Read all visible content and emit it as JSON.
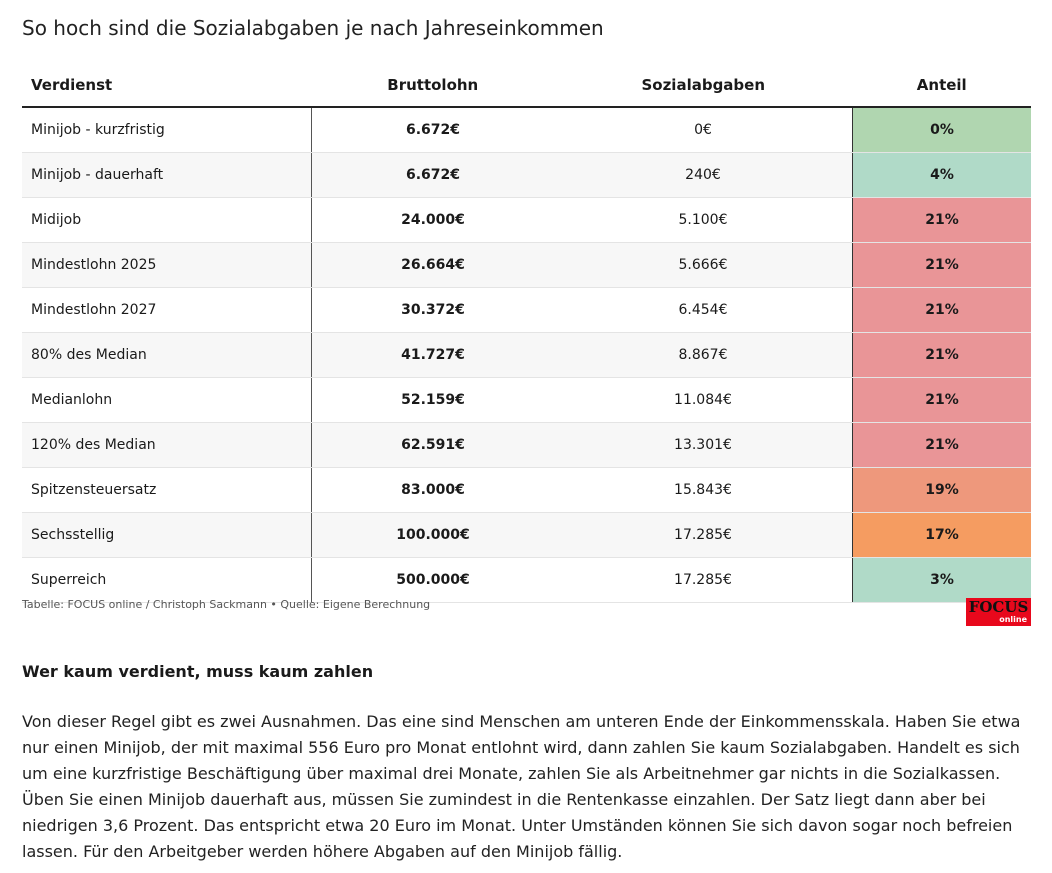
{
  "title": "So hoch sind die Sozialabgaben je nach Jahreseinkommen",
  "table": {
    "headers": [
      "Verdienst",
      "Bruttolohn",
      "Sozialabgaben",
      "Anteil"
    ],
    "rows": [
      {
        "verdienst": "Minijob - kurzfristig",
        "brutto": "6.672€",
        "abgaben": "0€",
        "anteil": "0%",
        "color": "#b0d6b0"
      },
      {
        "verdienst": "Minijob - dauerhaft",
        "brutto": "6.672€",
        "abgaben": "240€",
        "anteil": "4%",
        "color": "#b0dac8"
      },
      {
        "verdienst": "Midijob",
        "brutto": "24.000€",
        "abgaben": "5.100€",
        "anteil": "21%",
        "color": "#e99597"
      },
      {
        "verdienst": "Mindestlohn 2025",
        "brutto": "26.664€",
        "abgaben": "5.666€",
        "anteil": "21%",
        "color": "#e99597"
      },
      {
        "verdienst": "Mindestlohn 2027",
        "brutto": "30.372€",
        "abgaben": "6.454€",
        "anteil": "21%",
        "color": "#e99597"
      },
      {
        "verdienst": "80% des Median",
        "brutto": "41.727€",
        "abgaben": "8.867€",
        "anteil": "21%",
        "color": "#e99597"
      },
      {
        "verdienst": "Medianlohn",
        "brutto": "52.159€",
        "abgaben": "11.084€",
        "anteil": "21%",
        "color": "#e99597"
      },
      {
        "verdienst": "120% des Median",
        "brutto": "62.591€",
        "abgaben": "13.301€",
        "anteil": "21%",
        "color": "#e99597"
      },
      {
        "verdienst": "Spitzensteuersatz",
        "brutto": "83.000€",
        "abgaben": "15.843€",
        "anteil": "19%",
        "color": "#ee987c"
      },
      {
        "verdienst": "Sechsstellig",
        "brutto": "100.000€",
        "abgaben": "17.285€",
        "anteil": "17%",
        "color": "#f59c61"
      },
      {
        "verdienst": "Superreich",
        "brutto": "500.000€",
        "abgaben": "17.285€",
        "anteil": "3%",
        "color": "#b0dac8"
      }
    ]
  },
  "caption": "Tabelle: FOCUS online / Christoph Sackmann • Quelle: Eigene Berechnung",
  "logo": {
    "main": "FOCUS",
    "sub": "online"
  },
  "article": {
    "heading": "Wer kaum verdient, muss kaum zahlen",
    "paragraph": "Von dieser Regel gibt es zwei Ausnahmen. Das eine sind Menschen am unteren Ende der Einkommensskala. Haben Sie etwa nur einen Minijob, der mit maximal 556 Euro pro Monat entlohnt wird, dann zahlen Sie kaum Sozialabgaben. Handelt es sich um eine kurzfristige Beschäftigung über maximal drei Monate, zahlen Sie als Arbeitnehmer gar nichts in die Sozialkassen. Üben Sie einen Minijob dauerhaft aus, müssen Sie zumindest in die Rentenkasse einzahlen. Der Satz liegt dann aber bei niedrigen 3,6 Prozent. Das entspricht etwa 20 Euro im Monat. Unter Umständen können Sie sich davon sogar noch befreien lassen. Für den Arbeitgeber werden höhere Abgaben auf den Minijob fällig."
  }
}
